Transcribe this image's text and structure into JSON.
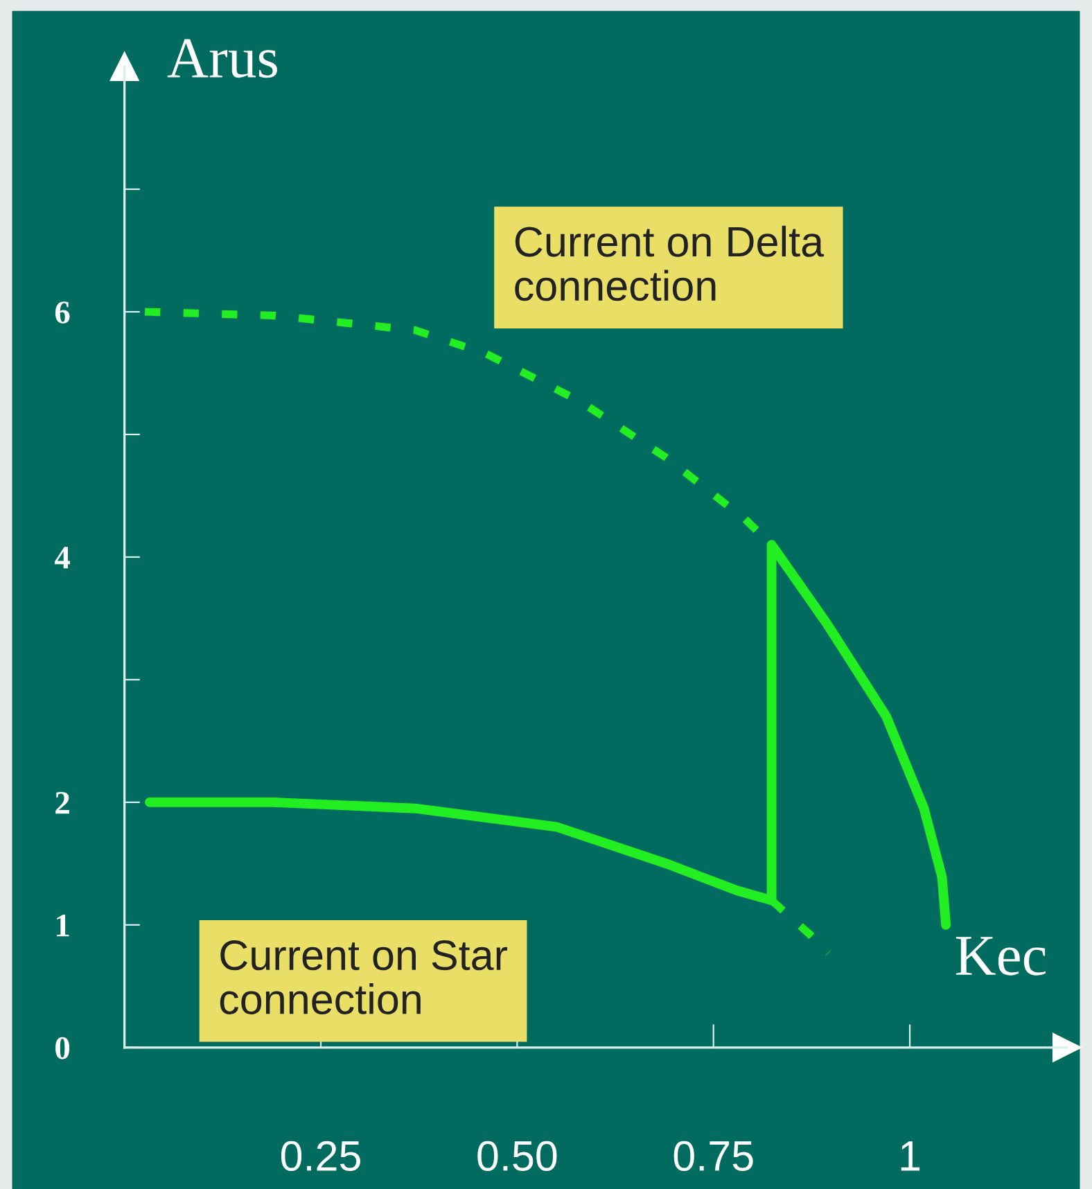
{
  "chart_data": {
    "type": "line",
    "xlabel": "Kec",
    "ylabel": "Arus",
    "xlim": [
      0,
      1.2
    ],
    "ylim": [
      0,
      8
    ],
    "xticks": [
      0.25,
      {
        "value": 0.5,
        "label": "0.50"
      },
      0.75,
      1
    ],
    "yticks": [
      0,
      1,
      2,
      {
        "value": 3,
        "label": null
      },
      4,
      {
        "value": 5,
        "label": null
      },
      6,
      {
        "value": 7,
        "label": null
      }
    ],
    "grid": false,
    "legend": false,
    "marker": "none",
    "series": [
      {
        "color": "#22ee22",
        "line_style": "dotted",
        "x": [
          0.026,
          0.19,
          0.37,
          0.46,
          0.58,
          0.69,
          0.79,
          0.824
        ],
        "values": [
          6.0,
          5.97,
          5.85,
          5.66,
          5.27,
          4.81,
          4.31,
          4.1
        ]
      },
      {
        "color": "#22ee22",
        "line_style": "solid",
        "x": [
          0.824,
          0.824,
          0.894,
          0.97,
          1.018,
          1.041,
          1.046
        ],
        "values": [
          1.2,
          4.1,
          3.46,
          2.7,
          1.95,
          1.39,
          1.0
        ]
      },
      {
        "color": "#22ee22",
        "line_style": "solid",
        "x": [
          0.032,
          0.19,
          0.37,
          0.55,
          0.69,
          0.78,
          0.824
        ],
        "values": [
          2.0,
          2.0,
          1.95,
          1.8,
          1.5,
          1.28,
          1.2
        ]
      },
      {
        "color": "#22ee22",
        "line_style": "dotted",
        "x": [
          0.824,
          0.873,
          0.896
        ],
        "values": [
          1.2,
          0.92,
          0.77
        ]
      }
    ],
    "annotations": [
      "Current on Delta\nconnection",
      "Current on Star\nconnection"
    ]
  }
}
